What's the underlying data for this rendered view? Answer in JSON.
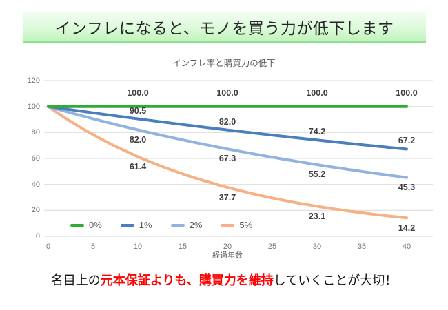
{
  "banner": {
    "title": "インフレになると、モノを買う力が低下します"
  },
  "chart_data": {
    "type": "line",
    "title": "インフレ率と購買力の低下",
    "xlabel": "経過年数",
    "ylabel": "",
    "xlim": [
      0,
      40
    ],
    "ylim": [
      0,
      120
    ],
    "x_ticks": [
      0,
      5,
      10,
      15,
      20,
      25,
      30,
      35,
      40
    ],
    "y_ticks": [
      0,
      20,
      40,
      60,
      80,
      100,
      120
    ],
    "grid": "horizontal",
    "grid_color": "#D9D9D9",
    "legend_position": "inside-bottom-left",
    "x": [
      0,
      5,
      10,
      15,
      20,
      25,
      30,
      35,
      40
    ],
    "series": [
      {
        "name": "0%",
        "rate": 0.0,
        "color": "#2EAC34",
        "label_dy": -20,
        "values": [
          100.0,
          100.0,
          100.0,
          100.0,
          100.0,
          100.0,
          100.0,
          100.0,
          100.0
        ],
        "labels": [
          {
            "x": 10,
            "value": "100.0"
          },
          {
            "x": 20,
            "value": "100.0"
          },
          {
            "x": 30,
            "value": "100.0"
          },
          {
            "x": 40,
            "value": "100.0"
          }
        ]
      },
      {
        "name": "1%",
        "rate": 0.01,
        "color": "#4A7EBD",
        "label_dy": -12,
        "values": [
          100.0,
          95.1,
          90.5,
          86.1,
          82.0,
          78.0,
          74.2,
          70.6,
          67.2
        ],
        "labels": [
          {
            "x": 10,
            "value": "90.5"
          },
          {
            "x": 20,
            "value": "82.0"
          },
          {
            "x": 30,
            "value": "74.2"
          },
          {
            "x": 40,
            "value": "67.2"
          }
        ]
      },
      {
        "name": "2%",
        "rate": 0.02,
        "color": "#92B2DF",
        "label_dy": 14,
        "values": [
          100.0,
          90.6,
          82.0,
          74.3,
          67.3,
          61.0,
          55.2,
          50.0,
          45.3
        ],
        "labels": [
          {
            "x": 10,
            "value": "82.0"
          },
          {
            "x": 20,
            "value": "67.3"
          },
          {
            "x": 30,
            "value": "55.2"
          },
          {
            "x": 40,
            "value": "45.3"
          }
        ]
      },
      {
        "name": "5%",
        "rate": 0.05,
        "color": "#F5B183",
        "label_dy": 15,
        "values": [
          100.0,
          78.4,
          61.4,
          48.1,
          37.7,
          29.5,
          23.1,
          18.1,
          14.2
        ],
        "labels": [
          {
            "x": 10,
            "value": "61.4"
          },
          {
            "x": 20,
            "value": "37.7"
          },
          {
            "x": 30,
            "value": "23.1"
          },
          {
            "x": 40,
            "value": "14.2"
          }
        ]
      }
    ]
  },
  "footer": {
    "prefix": "名目上の",
    "highlight": "元本保証よりも、購買力を維持",
    "suffix": "していくことが大切！",
    "highlight_color": "#FF0000"
  }
}
